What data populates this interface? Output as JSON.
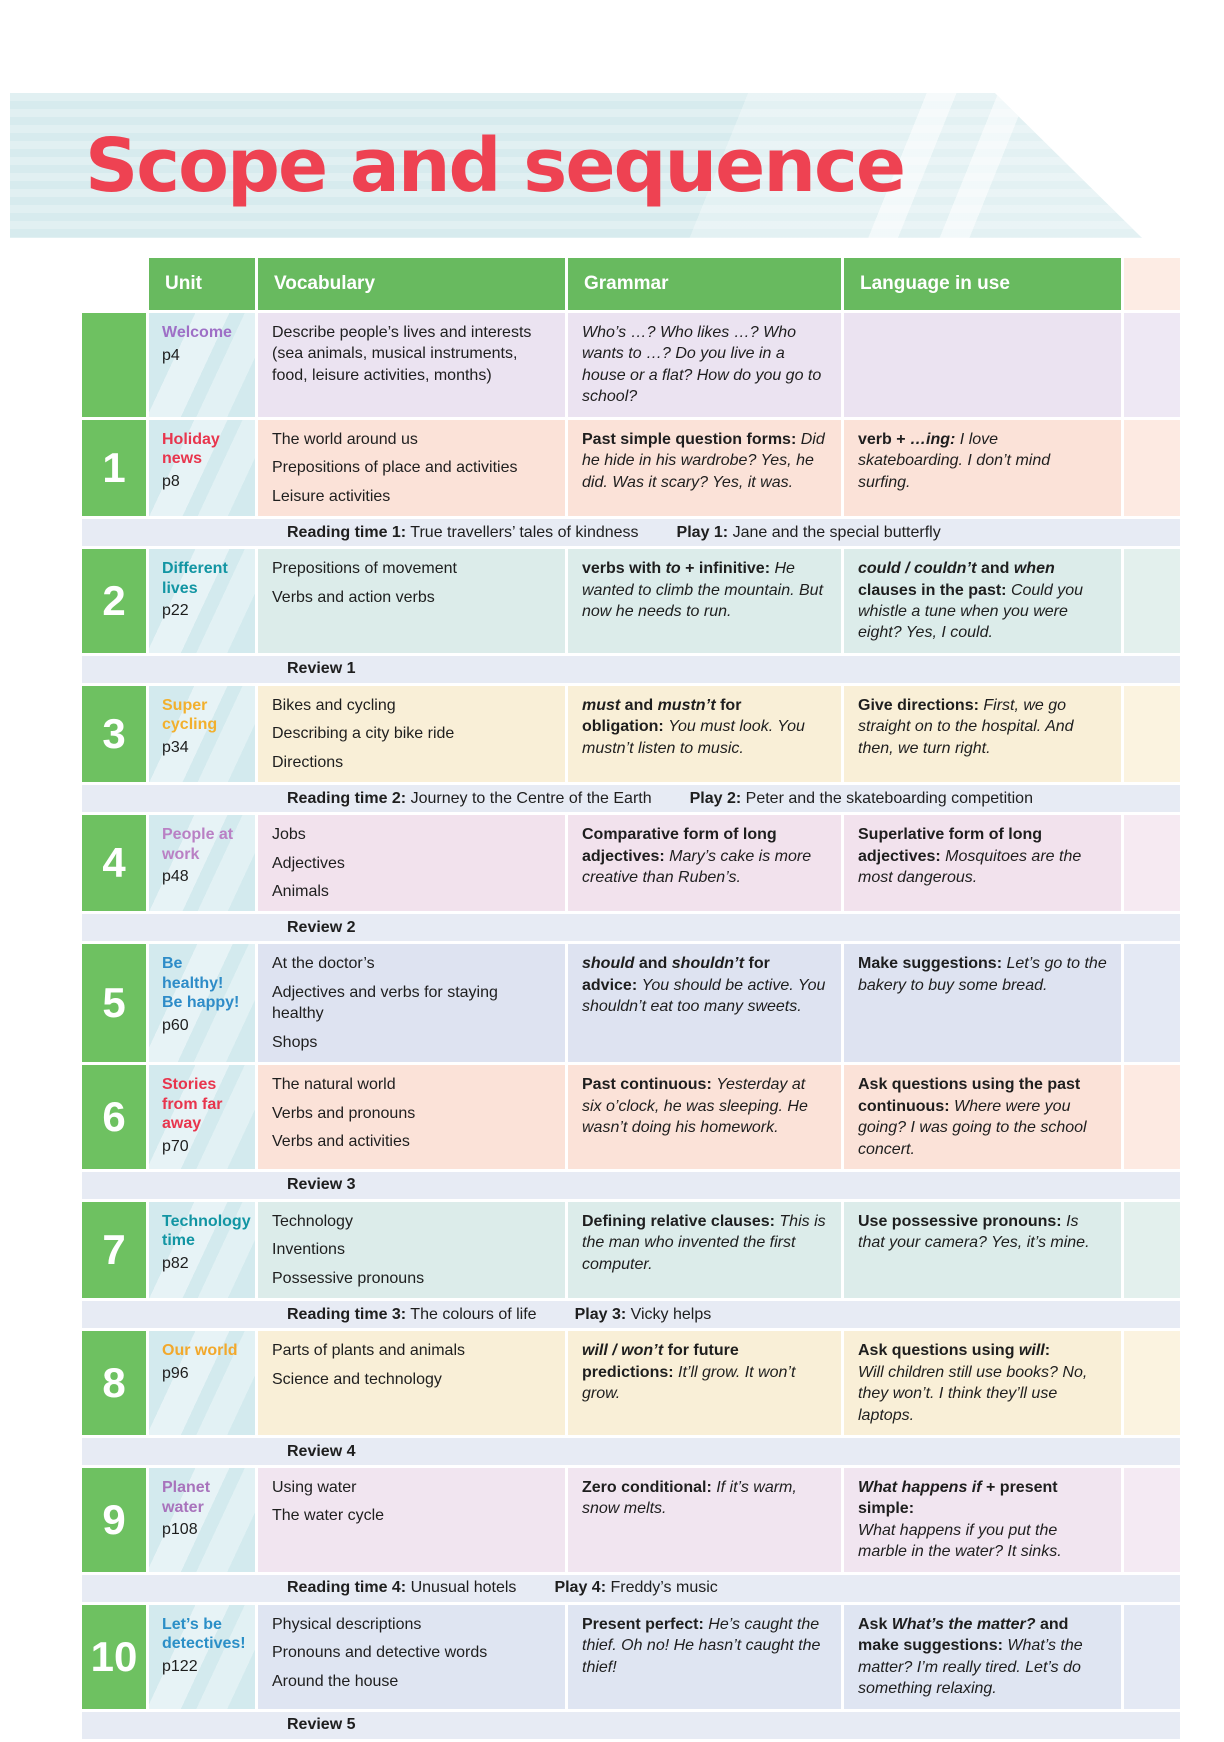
{
  "title": "Scope and sequence",
  "header": {
    "unit": "Unit",
    "vocabulary": "Vocabulary",
    "grammar": "Grammar",
    "language": "Language in use"
  },
  "colors": {
    "title_red": "#ee4252",
    "banner_blue": "#d7ebee",
    "header_green": "#68ba5f",
    "square_green": "#6ec161",
    "header_tail": "#fdece4",
    "divider_bg": "#e7ebf4"
  },
  "rows": [
    {
      "type": "unit",
      "number": "",
      "name": "Welcome",
      "page": "p4",
      "theme": {
        "name_color": "#9e6fc6",
        "bg": "#ebe3f1",
        "tail": "#eee8f4"
      },
      "vocabulary": [
        "Describe people’s lives and interests (sea animals, musical instruments, food, leisure activities, months)"
      ],
      "grammar": [
        {
          "t": "Who’s …? Who likes …? Who wants to …? Do you live in a house or a flat? How do you go to school?",
          "i": true
        }
      ],
      "language": []
    },
    {
      "type": "unit",
      "number": "1",
      "name": "Holiday news",
      "page": "p8",
      "theme": {
        "name_color": "#e8354d",
        "bg": "#fbe2d8",
        "tail": "#fdeae2"
      },
      "vocabulary": [
        "The world around us",
        "Prepositions of place and activities",
        "Leisure activities"
      ],
      "grammar": [
        {
          "t": "Past simple question forms: ",
          "b": true
        },
        {
          "t": "Did he hide in his wardrobe? Yes, he did. Was it scary? Yes, it was.",
          "i": true
        }
      ],
      "language": [
        {
          "t": "verb + ",
          "b": true
        },
        {
          "t": "…ing:",
          "b": true,
          "i": true
        },
        {
          "t": " I love skateboarding. I don’t mind surfing.",
          "i": true
        }
      ]
    },
    {
      "type": "divider",
      "parts": [
        {
          "label": "Reading time 1:",
          "text": "True travellers’ tales of kindness"
        },
        {
          "label": "Play 1:",
          "text": "Jane and the special butterfly"
        }
      ]
    },
    {
      "type": "unit",
      "number": "2",
      "name": "Different lives",
      "page": "p22",
      "theme": {
        "name_color": "#1295a3",
        "bg": "#dcecea",
        "tail": "#e3f0ed"
      },
      "vocabulary": [
        "Prepositions of movement",
        "Verbs and action verbs"
      ],
      "grammar": [
        {
          "t": "verbs with ",
          "b": true
        },
        {
          "t": "to",
          "b": true,
          "i": true
        },
        {
          "t": " + infinitive: ",
          "b": true
        },
        {
          "t": "He wanted to climb the mountain. But now he needs to run.",
          "i": true
        }
      ],
      "language": [
        {
          "t": "could / couldn’t",
          "b": true,
          "i": true
        },
        {
          "t": " and ",
          "b": true
        },
        {
          "t": "when",
          "b": true,
          "i": true
        },
        {
          "t": " clauses in the past: ",
          "b": true
        },
        {
          "t": "Could you whistle a tune when you were eight? Yes, I could.",
          "i": true
        }
      ]
    },
    {
      "type": "divider",
      "parts": [
        {
          "label": "Review 1",
          "text": ""
        }
      ]
    },
    {
      "type": "unit",
      "number": "3",
      "name": "Super cycling",
      "page": "p34",
      "theme": {
        "name_color": "#f2b02d",
        "bg": "#f9efd7",
        "tail": "#fbf3e0"
      },
      "vocabulary": [
        "Bikes and cycling",
        "Describing a city bike ride",
        "Directions"
      ],
      "grammar": [
        {
          "t": "must",
          "b": true,
          "i": true
        },
        {
          "t": " and ",
          "b": true
        },
        {
          "t": "mustn’t",
          "b": true,
          "i": true
        },
        {
          "t": " for obligation: ",
          "b": true
        },
        {
          "t": "You must look. You mustn’t listen to music.",
          "i": true
        }
      ],
      "language": [
        {
          "t": "Give directions: ",
          "b": true
        },
        {
          "t": "First, we go straight on to the hospital. And then, we turn right.",
          "i": true
        }
      ]
    },
    {
      "type": "divider",
      "parts": [
        {
          "label": "Reading time 2:",
          "text": "Journey to the Centre of the Earth"
        },
        {
          "label": "Play 2:",
          "text": "Peter and the skateboarding competition"
        }
      ]
    },
    {
      "type": "unit",
      "number": "4",
      "name": "People at work",
      "page": "p48",
      "theme": {
        "name_color": "#b980c4",
        "bg": "#f2e2ed",
        "tail": "#f6eaf2"
      },
      "vocabulary": [
        "Jobs",
        "Adjectives",
        "Animals"
      ],
      "grammar": [
        {
          "t": "Comparative form of long adjectives: ",
          "b": true
        },
        {
          "t": "Mary’s cake is more creative than Ruben’s.",
          "i": true
        }
      ],
      "language": [
        {
          "t": "Superlative form of long adjectives: ",
          "b": true
        },
        {
          "t": "Mosquitoes are the most dangerous.",
          "i": true
        }
      ]
    },
    {
      "type": "divider",
      "parts": [
        {
          "label": "Review 2",
          "text": ""
        }
      ]
    },
    {
      "type": "unit",
      "number": "5",
      "name": "Be healthy!\nBe happy!",
      "page": "p60",
      "theme": {
        "name_color": "#2e8cc8",
        "bg": "#dee3f1",
        "tail": "#e4e9f4"
      },
      "vocabulary": [
        "At the doctor’s",
        "Adjectives and verbs for staying healthy",
        "Shops"
      ],
      "grammar": [
        {
          "t": "should",
          "b": true,
          "i": true
        },
        {
          "t": " and ",
          "b": true
        },
        {
          "t": "shouldn’t",
          "b": true,
          "i": true
        },
        {
          "t": " for advice: ",
          "b": true
        },
        {
          "t": "You should be active. You shouldn’t eat too many sweets.",
          "i": true
        }
      ],
      "language": [
        {
          "t": "Make suggestions: ",
          "b": true
        },
        {
          "t": "Let’s go to the bakery to buy some bread.",
          "i": true
        }
      ]
    },
    {
      "type": "unit",
      "number": "6",
      "name": "Stories from far away",
      "page": "p70",
      "theme": {
        "name_color": "#e8354d",
        "bg": "#fbe2d8",
        "tail": "#fdeae2"
      },
      "vocabulary": [
        "The natural world",
        "Verbs and pronouns",
        "Verbs and activities"
      ],
      "grammar": [
        {
          "t": "Past continuous: ",
          "b": true
        },
        {
          "t": "Yesterday at six o’clock, he was sleeping. He wasn’t doing his homework.",
          "i": true
        }
      ],
      "language": [
        {
          "t": "Ask questions using the past continuous: ",
          "b": true
        },
        {
          "t": "Where were you going? I was going to the school concert.",
          "i": true
        }
      ]
    },
    {
      "type": "divider",
      "parts": [
        {
          "label": "Review 3",
          "text": ""
        }
      ]
    },
    {
      "type": "unit",
      "number": "7",
      "name": "Technology time",
      "page": "p82",
      "theme": {
        "name_color": "#1295a3",
        "bg": "#dcecea",
        "tail": "#e3f0ed"
      },
      "vocabulary": [
        "Technology",
        "Inventions",
        "Possessive pronouns"
      ],
      "grammar": [
        {
          "t": "Defining relative clauses: ",
          "b": true
        },
        {
          "t": "This is the man who invented the first computer.",
          "i": true
        }
      ],
      "language": [
        {
          "t": "Use possessive pronouns: ",
          "b": true
        },
        {
          "t": "Is that your camera? Yes, it’s mine.",
          "i": true
        }
      ]
    },
    {
      "type": "divider",
      "parts": [
        {
          "label": "Reading time 3:",
          "text": "The colours of life"
        },
        {
          "label": "Play 3:",
          "text": "Vicky helps"
        }
      ]
    },
    {
      "type": "unit",
      "number": "8",
      "name": "Our world",
      "page": "p96",
      "theme": {
        "name_color": "#f2a82b",
        "bg": "#f9efd7",
        "tail": "#fbf3e0"
      },
      "vocabulary": [
        "Parts of plants and animals",
        "Science and technology"
      ],
      "grammar": [
        {
          "t": "will / won’t",
          "b": true,
          "i": true
        },
        {
          "t": " for future predictions: ",
          "b": true
        },
        {
          "t": "It’ll grow. It won’t grow.",
          "i": true
        }
      ],
      "language": [
        {
          "t": "Ask questions using ",
          "b": true
        },
        {
          "t": "will",
          "b": true,
          "i": true
        },
        {
          "t": ":",
          "b": true
        },
        {
          "br": true
        },
        {
          "t": "Will children still use books? No, they won’t. I think they’ll use laptops.",
          "i": true
        }
      ]
    },
    {
      "type": "divider",
      "parts": [
        {
          "label": "Review 4",
          "text": ""
        }
      ]
    },
    {
      "type": "unit",
      "number": "9",
      "name": "Planet water",
      "page": "p108",
      "theme": {
        "name_color": "#a873bc",
        "bg": "#f1e5f0",
        "tail": "#f4eaf3"
      },
      "vocabulary": [
        "Using water",
        "The water cycle"
      ],
      "grammar": [
        {
          "t": "Zero conditional: ",
          "b": true
        },
        {
          "t": "If it’s warm, snow melts.",
          "i": true
        }
      ],
      "language": [
        {
          "t": "What happens if",
          "b": true,
          "i": true
        },
        {
          "t": " + present simple: ",
          "b": true
        },
        {
          "br": true
        },
        {
          "t": "What happens if you put the marble in the water? It sinks.",
          "i": true
        }
      ]
    },
    {
      "type": "divider",
      "parts": [
        {
          "label": "Reading time 4:",
          "text": "Unusual hotels"
        },
        {
          "label": "Play 4:",
          "text": "Freddy’s music"
        }
      ]
    },
    {
      "type": "unit",
      "number": "10",
      "name": "Let’s be detectives!",
      "page": "p122",
      "theme": {
        "name_color": "#2b8fc7",
        "bg": "#dfe5f2",
        "tail": "#e4e9f4"
      },
      "vocabulary": [
        "Physical descriptions",
        "Pronouns and detective words",
        "Around the house"
      ],
      "grammar": [
        {
          "t": "Present perfect: ",
          "b": true
        },
        {
          "t": "He’s caught the thief. Oh no! He hasn’t caught the thief!",
          "i": true
        }
      ],
      "language": [
        {
          "t": "Ask ",
          "b": true
        },
        {
          "t": "What’s the matter?",
          "b": true,
          "i": true
        },
        {
          "t": " and make suggestions: ",
          "b": true
        },
        {
          "t": "What’s the matter? I’m really tired. Let’s do something relaxing.",
          "i": true
        }
      ]
    },
    {
      "type": "divider",
      "parts": [
        {
          "label": "Review 5",
          "text": ""
        }
      ]
    }
  ]
}
